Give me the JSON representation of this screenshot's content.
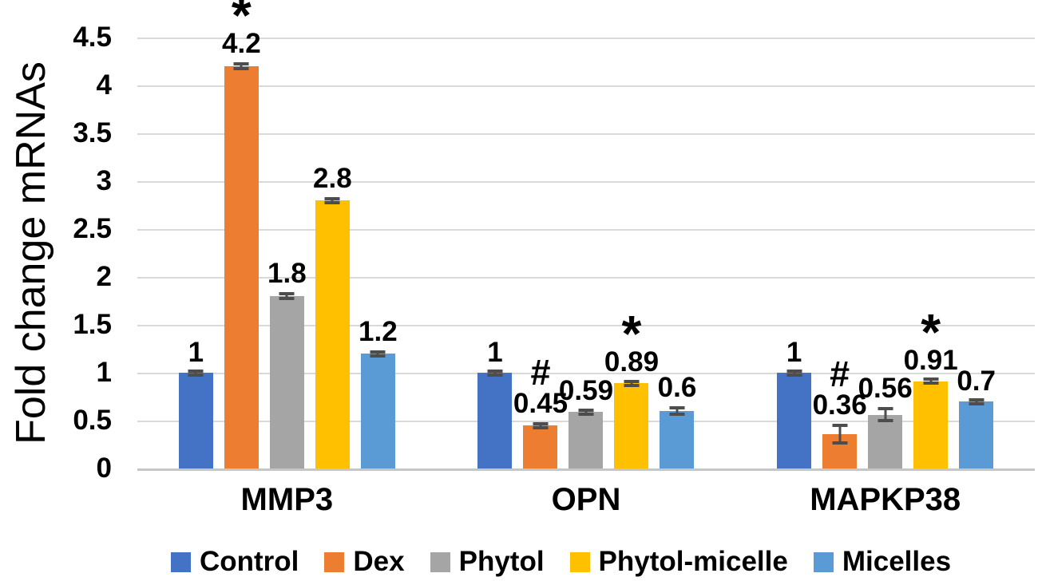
{
  "chart_data": {
    "type": "bar",
    "title": "",
    "ylabel": "Fold change mRNAs",
    "xlabel": "",
    "ylim": [
      0,
      4.5
    ],
    "ytick_step": 0.5,
    "yticks": [
      "4.5",
      "4",
      "3.5",
      "3",
      "2.5",
      "2",
      "1.5",
      "1",
      "0.5",
      "0"
    ],
    "grid": "horizontal",
    "legend_position": "bottom",
    "categories": [
      "MMP3",
      "OPN",
      "MAPKP38"
    ],
    "series": [
      {
        "name": "Control",
        "color": "#4472C4",
        "values": [
          1,
          1,
          1
        ],
        "labels": [
          "1",
          "1",
          "1"
        ],
        "errors": [
          0.015,
          0.015,
          0.015
        ],
        "symbols": [
          "",
          "",
          ""
        ]
      },
      {
        "name": "Dex",
        "color": "#ED7D31",
        "values": [
          4.2,
          0.45,
          0.36
        ],
        "labels": [
          "4.2",
          "0.45",
          "0.36"
        ],
        "errors": [
          0.04,
          0.03,
          0.11
        ],
        "symbols": [
          "*",
          "#",
          "#"
        ]
      },
      {
        "name": "Phytol",
        "color": "#A5A5A5",
        "values": [
          1.8,
          0.59,
          0.56
        ],
        "labels": [
          "1.8",
          "0.59",
          "0.56"
        ],
        "errors": [
          0.04,
          0.03,
          0.08
        ],
        "symbols": [
          "",
          "",
          ""
        ]
      },
      {
        "name": "Phytol-micelle",
        "color": "#FFC000",
        "values": [
          2.8,
          0.89,
          0.91
        ],
        "labels": [
          "2.8",
          "0.89",
          "0.91"
        ],
        "errors": [
          0.03,
          0.025,
          0.025
        ],
        "symbols": [
          "",
          "*",
          "*"
        ]
      },
      {
        "name": "Micelles",
        "color": "#5B9BD5",
        "values": [
          1.2,
          0.6,
          0.7
        ],
        "labels": [
          "1.2",
          "0.6",
          "0.7"
        ],
        "errors": [
          0.03,
          0.05,
          0.02
        ],
        "symbols": [
          "",
          "",
          ""
        ]
      }
    ],
    "colors": {
      "gridline": "#D9D9D9",
      "axis_line": "#C6C6C6",
      "error_bar": "#4D4D4D",
      "text": "#000000",
      "background": "#FFFFFF"
    }
  }
}
